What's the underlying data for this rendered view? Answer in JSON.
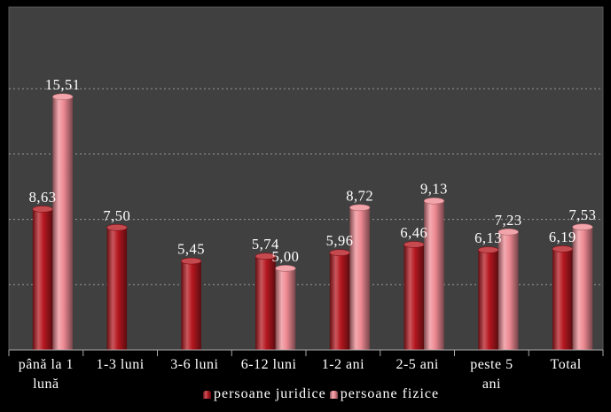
{
  "chart_data": {
    "type": "bar",
    "categories": [
      "până la 1 lună",
      "1-3 luni",
      "3-6 luni",
      "6-12 luni",
      "1-2 ani",
      "2-5 ani",
      "peste 5 ani",
      "Total"
    ],
    "series": [
      {
        "name": "persoane juridice",
        "color": "#b5171f",
        "values": [
          8.63,
          7.5,
          5.45,
          5.74,
          5.96,
          6.46,
          6.13,
          6.19
        ],
        "labels": [
          "8,63",
          "7,50",
          "5,45",
          "5,74",
          "5,96",
          "6,46",
          "6,13",
          "6,19"
        ]
      },
      {
        "name": "persoane fizice",
        "color": "#ee8a93",
        "values": [
          15.51,
          null,
          null,
          5.0,
          8.72,
          9.13,
          7.23,
          7.53
        ],
        "labels": [
          "15,51",
          null,
          null,
          "5,00",
          "8,72",
          "9,13",
          "7,23",
          "7,53"
        ]
      }
    ],
    "ylim": [
      0,
      21
    ],
    "grid": true,
    "legend": "bottom",
    "data_labels": true
  },
  "colors": {
    "background": "#000000",
    "plot_area": "#404040",
    "text": "#ffffff"
  }
}
